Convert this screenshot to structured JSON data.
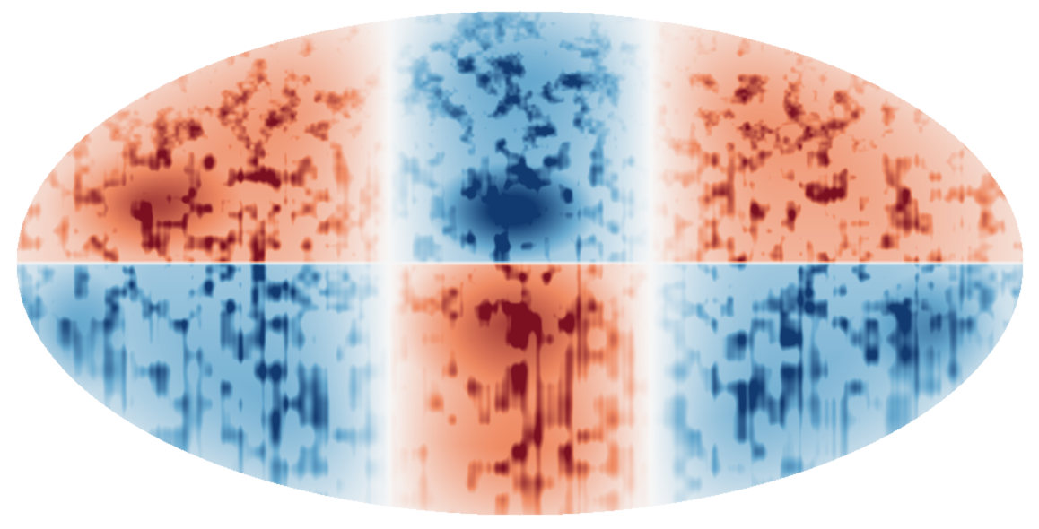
{
  "map": {
    "projection": "mollweide",
    "colormap": {
      "name": "diverging-red-blue",
      "negative": "#113a70",
      "neutral": "#f7f7f7",
      "positive": "#7c1021"
    },
    "pattern": {
      "north_hemisphere": {
        "center": "blue",
        "flanks": "red"
      },
      "south_hemisphere": {
        "center": "red",
        "flanks": "blue"
      }
    },
    "colorbar_shown": false,
    "graticule_shown": false,
    "labels_shown": false
  }
}
